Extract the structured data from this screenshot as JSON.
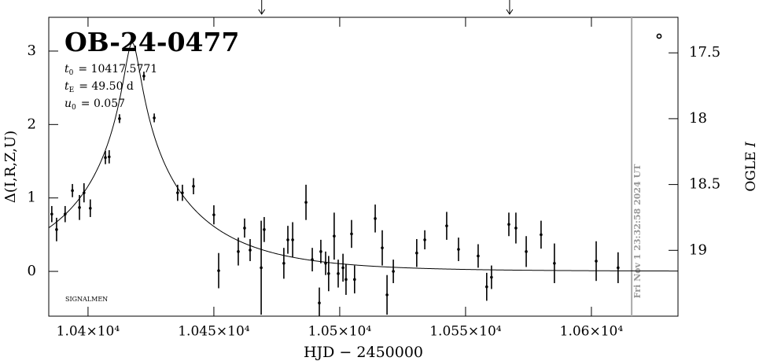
{
  "chart_data": {
    "type": "scatter",
    "title": "OB-24-0477",
    "x_label": "HJD − 2450000",
    "y_label": "Δ(I,R,Z,U)",
    "y2_label_main": "OGLE",
    "y2_label_italic": "I",
    "footnote": "SIGNALMEN",
    "timestamp": "Fri Nov  1 23:32:58 2024 UT",
    "parameters": [
      {
        "symbol": "t",
        "subscript": "0",
        "value": 10417.5771,
        "label": "= 10417.5771"
      },
      {
        "symbol": "t",
        "subscript": "E",
        "value": 49.5,
        "label": "= 49.50 d"
      },
      {
        "symbol": "u",
        "subscript": "0",
        "value": 0.057,
        "label": "= 0.057"
      }
    ],
    "x": [
      10385.6,
      10387.5,
      10390.9,
      10393.8,
      10396.6,
      10398.4,
      10400.9,
      10406.9,
      10408.4,
      10412.5,
      10422.2,
      10426.3,
      10435.6,
      10437.5,
      10441.9,
      10450.0,
      10451.9,
      10459.7,
      10462.2,
      10464.4,
      10468.8,
      10470.0,
      10477.8,
      10479.4,
      10481.3,
      10486.6,
      10489.1,
      10491.9,
      10492.5,
      10494.4,
      10495.6,
      10497.8,
      10499.4,
      10501.3,
      10502.5,
      10504.7,
      10505.9,
      10514.1,
      10516.9,
      10518.8,
      10521.3,
      10530.6,
      10533.8,
      10542.5,
      10547.2,
      10555.0,
      10558.4,
      10560.3,
      10567.2,
      10570.0,
      10574.1,
      10580.0,
      10585.3,
      10601.9,
      10610.6
    ],
    "values": [
      0.78,
      0.57,
      0.78,
      1.1,
      0.87,
      1.07,
      0.86,
      1.55,
      1.56,
      2.08,
      2.66,
      2.09,
      1.07,
      1.07,
      1.16,
      0.77,
      0.01,
      0.27,
      0.59,
      0.29,
      0.05,
      0.57,
      0.11,
      0.43,
      0.43,
      0.94,
      0.16,
      -0.43,
      0.27,
      0.11,
      -0.03,
      0.48,
      -0.03,
      0.05,
      -0.11,
      0.51,
      -0.11,
      0.72,
      0.32,
      -0.32,
      0.0,
      0.25,
      0.43,
      0.62,
      0.3,
      0.21,
      -0.21,
      -0.08,
      0.64,
      0.59,
      0.27,
      0.5,
      0.11,
      0.14,
      0.05
    ],
    "errors": [
      0.11,
      0.16,
      0.11,
      0.09,
      0.17,
      0.13,
      0.12,
      0.09,
      0.09,
      0.06,
      0.06,
      0.06,
      0.11,
      0.11,
      0.11,
      0.13,
      0.24,
      0.19,
      0.13,
      0.15,
      0.64,
      0.17,
      0.21,
      0.19,
      0.24,
      0.24,
      0.16,
      0.21,
      0.16,
      0.16,
      0.24,
      0.32,
      0.19,
      0.19,
      0.21,
      0.19,
      0.19,
      0.19,
      0.24,
      0.27,
      0.16,
      0.19,
      0.13,
      0.19,
      0.16,
      0.16,
      0.19,
      0.16,
      0.16,
      0.21,
      0.21,
      0.19,
      0.27,
      0.27,
      0.21
    ],
    "color": "#000000",
    "xlim": [
      10384.4,
      10634.4
    ],
    "xticks": [
      {
        "value": 10400,
        "label": "1.04×10⁴"
      },
      {
        "value": 10450,
        "label": "1.045×10⁴"
      },
      {
        "value": 10500,
        "label": "1.05×10⁴"
      },
      {
        "value": 10550,
        "label": "1.055×10⁴"
      },
      {
        "value": 10600,
        "label": "1.06×10⁴"
      }
    ],
    "ylim": [
      -0.61,
      3.46
    ],
    "yticks": [
      0,
      1,
      2,
      3
    ],
    "y2lim": [
      19.5,
      17.23
    ],
    "y2ticks": [
      17.5,
      18,
      18.5,
      19
    ],
    "arrows_x": [
      10469.0,
      10567.5
    ],
    "time_line_x": 10616.0
  }
}
